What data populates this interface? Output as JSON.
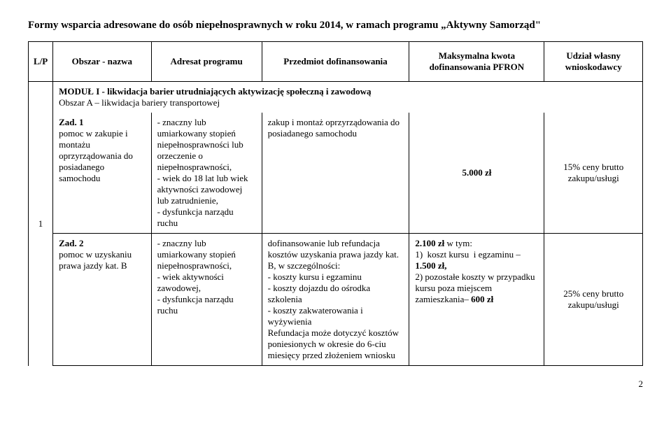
{
  "title": "Formy wsparcia adresowane do osób niepełnosprawnych w roku 2014,  w ramach programu „Aktywny Samorząd\"",
  "headers": {
    "lp": "L/P",
    "obszar": "Obszar - nazwa",
    "adresat": "Adresat programu",
    "przedmiot": "Przedmiot dofinansowania",
    "kwota": "Maksymalna kwota dofinansowania PFRON",
    "udzial": "Udział własny wnioskodawcy"
  },
  "module": {
    "line1_bold": "MODUŁ I    - likwidacja barier utrudniających aktywizację społeczną i zawodową",
    "line2": "Obszar  A – likwidacja bariery transportowej"
  },
  "row_lp": "1",
  "zad1": {
    "name": "Zad. 1\npomoc w zakupie i montażu oprzyrządowania do posiadanego samochodu",
    "adresat": "- znaczny lub umiarkowany stopień niepełnosprawności lub orzeczenie o niepełnosprawności,\n- wiek do 18 lat lub wiek aktywności zawodowej lub zatrudnienie,\n- dysfunkcja narządu ruchu",
    "przedmiot": "zakup i montaż oprzyrządowania do posiadanego samochodu",
    "kwota": "5.000 zł",
    "udzial": "15% ceny brutto zakupu/usługi"
  },
  "zad2": {
    "name": "Zad. 2\npomoc w uzyskaniu prawa jazdy kat. B",
    "adresat": "- znaczny lub umiarkowany stopień niepełnosprawności,\n- wiek aktywności zawodowej,\n- dysfunkcja narządu ruchu",
    "przedmiot": "dofinansowanie lub refundacja kosztów uzyskania prawa jazdy kat. B, w szczególności:\n- koszty kursu i egzaminu\n- koszty dojazdu do ośrodka szkolenia\n- koszty zakwaterowania i wyżywienia\nRefundacja może dotyczyć kosztów poniesionych w okresie do 6-ciu miesięcy  przed złożeniem wniosku",
    "kwota": "2.100 zł w tym:\n1)  koszt kursu  i egzaminu – 1.500 zł,\n2) pozostałe koszty w przypadku kursu poza miejscem zamieszkania– 600 zł",
    "udzial": "25% ceny brutto zakupu/usługi"
  },
  "pagenum": "2"
}
